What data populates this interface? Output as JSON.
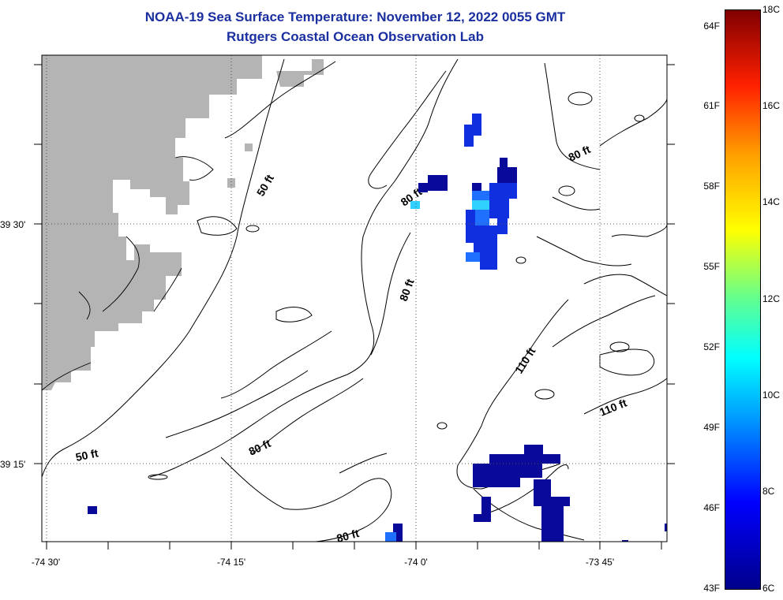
{
  "header": {
    "title": "NOAA-19 Sea Surface Temperature:  November 12, 2022 0055 GMT",
    "subtitle": "Rutgers Coastal Ocean Observation Lab"
  },
  "axes": {
    "latitude_labels": [
      "39 30'",
      "39 15'"
    ],
    "longitude_labels": [
      "-74 30'",
      "-74 15'",
      "-74 0'",
      "-73 45'"
    ]
  },
  "depth_contours": {
    "labels": [
      "50 ft",
      "50 ft",
      "80 ft",
      "80 ft",
      "80 ft",
      "80 ft",
      "80 ft",
      "110 ft",
      "110 ft"
    ]
  },
  "colorbar": {
    "fahrenheit_labels": [
      "64F",
      "61F",
      "58F",
      "55F",
      "52F",
      "49F",
      "46F",
      "43F"
    ],
    "celsius_labels": [
      "18C",
      "16C",
      "14C",
      "12C",
      "10C",
      "8C",
      "6C"
    ],
    "min_c": 6,
    "max_c": 18,
    "colors": [
      "#00008b",
      "#0000ff",
      "#00a0ff",
      "#00ffff",
      "#60ff90",
      "#ffff00",
      "#ffa000",
      "#ff2000",
      "#800000"
    ]
  },
  "colors": {
    "land": "#b4b4b4",
    "title": "#1a2fa0",
    "sst_cold": "#0a0a9a",
    "sst_blue": "#1030e0",
    "sst_mid": "#2070ff",
    "sst_cyan": "#30d0ff"
  }
}
